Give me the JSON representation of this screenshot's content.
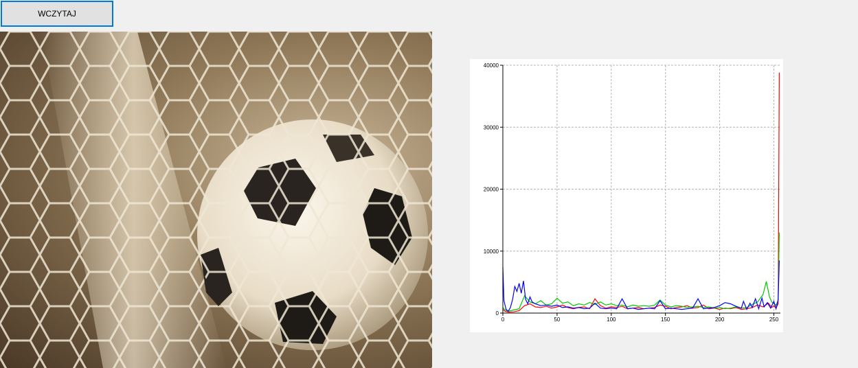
{
  "toolbar": {
    "load_label": "WCZYTAJ"
  },
  "photo": {
    "subject": "soccer-ball-in-net"
  },
  "chart_data": {
    "type": "line",
    "title": "",
    "xlabel": "",
    "ylabel": "",
    "xlim": [
      0,
      256
    ],
    "ylim": [
      0,
      40000
    ],
    "grid": true,
    "x_ticks": [
      0,
      50,
      100,
      150,
      200,
      250
    ],
    "y_ticks": [
      0,
      10000,
      20000,
      30000,
      40000
    ],
    "x_tick_labels": [
      "0",
      "50",
      "100",
      "150",
      "200",
      "250"
    ],
    "y_tick_labels": [
      "0",
      "10000",
      "20000",
      "30000",
      "40000"
    ],
    "series": [
      {
        "color": "#ff0000",
        "points": [
          [
            0,
            600
          ],
          [
            2,
            300
          ],
          [
            5,
            150
          ],
          [
            10,
            200
          ],
          [
            15,
            400
          ],
          [
            20,
            1200
          ],
          [
            25,
            1500
          ],
          [
            30,
            1000
          ],
          [
            35,
            900
          ],
          [
            40,
            1100
          ],
          [
            45,
            800
          ],
          [
            50,
            1000
          ],
          [
            55,
            1300
          ],
          [
            60,
            900
          ],
          [
            65,
            700
          ],
          [
            70,
            900
          ],
          [
            75,
            1000
          ],
          [
            80,
            700
          ],
          [
            85,
            2300
          ],
          [
            90,
            1200
          ],
          [
            95,
            800
          ],
          [
            100,
            1000
          ],
          [
            105,
            900
          ],
          [
            110,
            1100
          ],
          [
            115,
            700
          ],
          [
            120,
            800
          ],
          [
            125,
            900
          ],
          [
            130,
            700
          ],
          [
            135,
            800
          ],
          [
            140,
            900
          ],
          [
            145,
            1300
          ],
          [
            150,
            1100
          ],
          [
            155,
            700
          ],
          [
            160,
            900
          ],
          [
            165,
            1000
          ],
          [
            170,
            1200
          ],
          [
            175,
            800
          ],
          [
            180,
            900
          ],
          [
            185,
            1300
          ],
          [
            190,
            700
          ],
          [
            195,
            800
          ],
          [
            200,
            600
          ],
          [
            205,
            800
          ],
          [
            210,
            700
          ],
          [
            215,
            900
          ],
          [
            220,
            600
          ],
          [
            225,
            700
          ],
          [
            230,
            900
          ],
          [
            235,
            1300
          ],
          [
            240,
            1000
          ],
          [
            245,
            1600
          ],
          [
            248,
            900
          ],
          [
            250,
            1200
          ],
          [
            252,
            800
          ],
          [
            254,
            1500
          ],
          [
            255,
            38800
          ]
        ]
      },
      {
        "color": "#00c800",
        "points": [
          [
            0,
            900
          ],
          [
            2,
            500
          ],
          [
            5,
            300
          ],
          [
            10,
            500
          ],
          [
            15,
            700
          ],
          [
            20,
            2800
          ],
          [
            25,
            1800
          ],
          [
            30,
            1500
          ],
          [
            35,
            2000
          ],
          [
            40,
            1300
          ],
          [
            45,
            1500
          ],
          [
            50,
            2400
          ],
          [
            55,
            1600
          ],
          [
            60,
            1800
          ],
          [
            65,
            1200
          ],
          [
            70,
            1500
          ],
          [
            75,
            1300
          ],
          [
            80,
            1700
          ],
          [
            85,
            1400
          ],
          [
            90,
            1800
          ],
          [
            95,
            1300
          ],
          [
            100,
            1500
          ],
          [
            105,
            1200
          ],
          [
            110,
            1300
          ],
          [
            115,
            1000
          ],
          [
            120,
            1300
          ],
          [
            125,
            1100
          ],
          [
            130,
            1200
          ],
          [
            135,
            1100
          ],
          [
            140,
            1300
          ],
          [
            145,
            2100
          ],
          [
            150,
            1300
          ],
          [
            155,
            1000
          ],
          [
            160,
            1200
          ],
          [
            165,
            1100
          ],
          [
            170,
            900
          ],
          [
            175,
            1000
          ],
          [
            180,
            1100
          ],
          [
            185,
            900
          ],
          [
            190,
            1000
          ],
          [
            195,
            800
          ],
          [
            200,
            900
          ],
          [
            205,
            700
          ],
          [
            210,
            800
          ],
          [
            215,
            1000
          ],
          [
            220,
            800
          ],
          [
            225,
            900
          ],
          [
            230,
            1400
          ],
          [
            235,
            1800
          ],
          [
            240,
            3000
          ],
          [
            243,
            5100
          ],
          [
            246,
            2600
          ],
          [
            248,
            1800
          ],
          [
            250,
            1500
          ],
          [
            252,
            1300
          ],
          [
            254,
            2000
          ],
          [
            255,
            13000
          ]
        ]
      },
      {
        "color": "#0000ff",
        "points": [
          [
            0,
            7400
          ],
          [
            1,
            2000
          ],
          [
            3,
            600
          ],
          [
            5,
            300
          ],
          [
            7,
            900
          ],
          [
            9,
            2200
          ],
          [
            11,
            4300
          ],
          [
            13,
            3500
          ],
          [
            15,
            4800
          ],
          [
            17,
            3200
          ],
          [
            19,
            5200
          ],
          [
            21,
            2200
          ],
          [
            23,
            1500
          ],
          [
            25,
            2600
          ],
          [
            27,
            1800
          ],
          [
            30,
            1500
          ],
          [
            35,
            1200
          ],
          [
            40,
            1300
          ],
          [
            45,
            1100
          ],
          [
            50,
            1300
          ],
          [
            55,
            900
          ],
          [
            60,
            1000
          ],
          [
            65,
            800
          ],
          [
            70,
            900
          ],
          [
            75,
            700
          ],
          [
            80,
            800
          ],
          [
            85,
            1600
          ],
          [
            90,
            800
          ],
          [
            95,
            700
          ],
          [
            100,
            800
          ],
          [
            105,
            700
          ],
          [
            110,
            2300
          ],
          [
            115,
            700
          ],
          [
            120,
            800
          ],
          [
            125,
            600
          ],
          [
            130,
            700
          ],
          [
            135,
            800
          ],
          [
            140,
            700
          ],
          [
            145,
            2000
          ],
          [
            150,
            700
          ],
          [
            155,
            800
          ],
          [
            160,
            700
          ],
          [
            165,
            600
          ],
          [
            170,
            700
          ],
          [
            175,
            800
          ],
          [
            180,
            2300
          ],
          [
            185,
            700
          ],
          [
            190,
            800
          ],
          [
            195,
            900
          ],
          [
            200,
            1200
          ],
          [
            205,
            1700
          ],
          [
            210,
            1500
          ],
          [
            215,
            1100
          ],
          [
            220,
            800
          ],
          [
            222,
            1900
          ],
          [
            225,
            600
          ],
          [
            228,
            1600
          ],
          [
            230,
            900
          ],
          [
            233,
            2300
          ],
          [
            236,
            700
          ],
          [
            239,
            2400
          ],
          [
            241,
            1000
          ],
          [
            244,
            1700
          ],
          [
            247,
            800
          ],
          [
            250,
            1900
          ],
          [
            252,
            700
          ],
          [
            254,
            2200
          ],
          [
            255,
            8500
          ]
        ]
      }
    ]
  }
}
